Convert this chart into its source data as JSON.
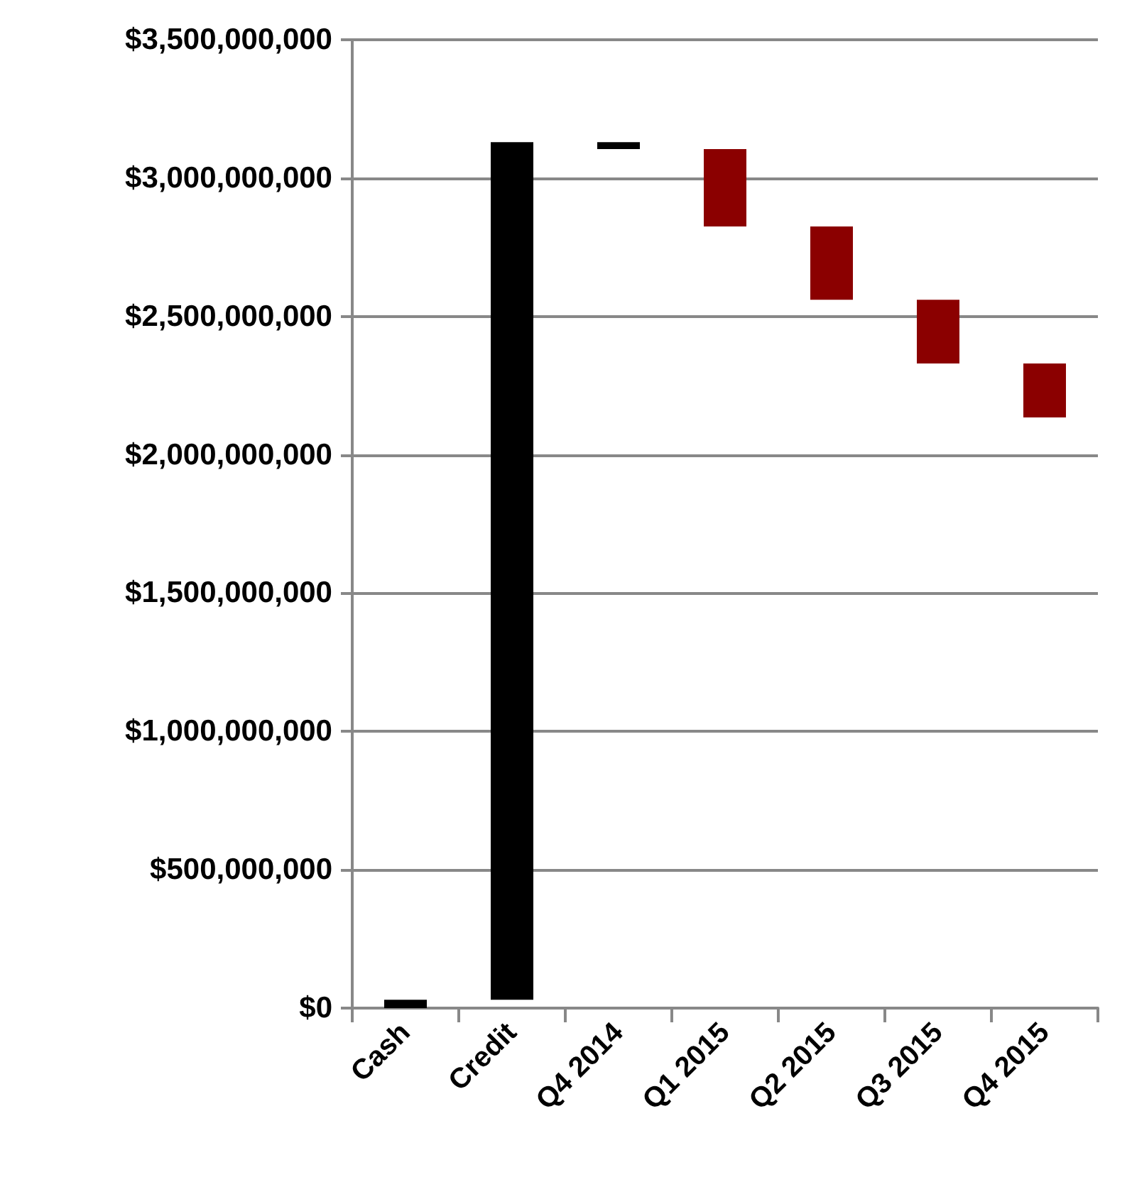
{
  "chart_data": {
    "type": "bar",
    "categories": [
      "Cash",
      "Credit",
      "Q4 2014",
      "Q1 2015",
      "Q2 2015",
      "Q3 2015",
      "Q4 2015"
    ],
    "values": [
      30000000,
      3100000000,
      -25000000,
      -280000000,
      -265000000,
      -230000000,
      -195000000
    ],
    "base": [
      0,
      30000000,
      3130000000,
      3105000000,
      2825000000,
      2560000000,
      2330000000
    ],
    "colors": [
      "#000000",
      "#000000",
      "#000000",
      "#8b0000",
      "#8b0000",
      "#8b0000",
      "#8b0000"
    ],
    "ylim": [
      0,
      3500000000
    ],
    "yticks": [
      {
        "value": 0,
        "label": "$0"
      },
      {
        "value": 500000000,
        "label": "$500,000,000"
      },
      {
        "value": 1000000000,
        "label": "$1,000,000,000"
      },
      {
        "value": 1500000000,
        "label": "$1,500,000,000"
      },
      {
        "value": 2000000000,
        "label": "$2,000,000,000"
      },
      {
        "value": 2500000000,
        "label": "$2,500,000,000"
      },
      {
        "value": 3000000000,
        "label": "$3,000,000,000"
      },
      {
        "value": 3500000000,
        "label": "$3,500,000,000"
      }
    ],
    "grid": "y"
  }
}
